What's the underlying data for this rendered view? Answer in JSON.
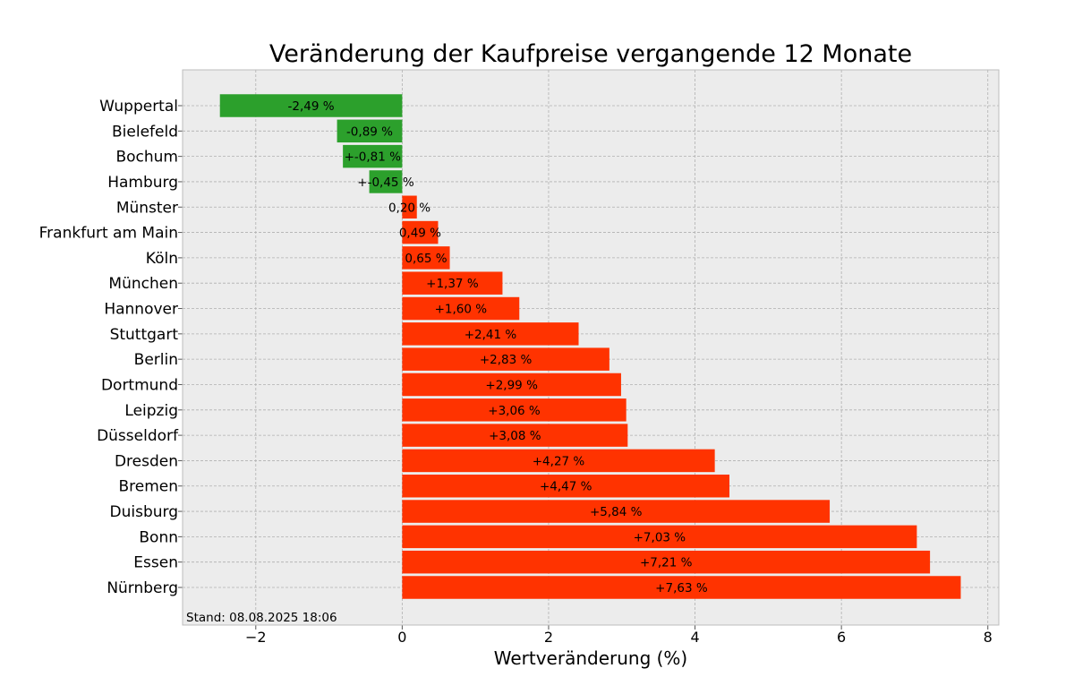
{
  "chart_data": {
    "type": "bar",
    "orientation": "horizontal",
    "title": "Veränderung der Kaufpreise vergangende 12 Monate",
    "xlabel": "Wertveränderung (%)",
    "ylabel": "",
    "xlim": [
      -3,
      8.15
    ],
    "xticks": [
      -2,
      0,
      2,
      4,
      6,
      8
    ],
    "xtick_labels": [
      "−2",
      "0",
      "2",
      "4",
      "6",
      "8"
    ],
    "grid": true,
    "categories": [
      "Wuppertal",
      "Bielefeld",
      "Bochum",
      "Hamburg",
      "Münster",
      "Frankfurt am Main",
      "Köln",
      "München",
      "Hannover",
      "Stuttgart",
      "Berlin",
      "Dortmund",
      "Leipzig",
      "Düsseldorf",
      "Dresden",
      "Bremen",
      "Duisburg",
      "Bonn",
      "Essen",
      "Nürnberg"
    ],
    "values": [
      -2.49,
      -0.89,
      -0.81,
      -0.45,
      0.2,
      0.49,
      0.65,
      1.37,
      1.6,
      2.41,
      2.83,
      2.99,
      3.06,
      3.08,
      4.27,
      4.47,
      5.84,
      7.03,
      7.21,
      7.63
    ],
    "value_labels": [
      "-2,49 %",
      "-0,89 %",
      "+-0,81 %",
      "+-0,45 %",
      "0,20 %",
      "0,49 %",
      "0,65 %",
      "+1,37 %",
      "+1,60 %",
      "+2,41 %",
      "+2,83 %",
      "+2,99 %",
      "+3,06 %",
      "+3,08 %",
      "+4,27 %",
      "+4,47 %",
      "+5,84 %",
      "+7,03 %",
      "+7,21 %",
      "+7,63 %"
    ],
    "colors": {
      "negative": "#2ca02c",
      "positive": "#ff3300",
      "plot_background": "#ececec"
    },
    "annotation": "Stand: 08.08.2025 18:06"
  }
}
